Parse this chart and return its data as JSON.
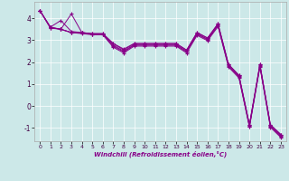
{
  "xlabel": "Windchill (Refroidissement éolien,°C)",
  "background_color": "#cce8e8",
  "line_color": "#880088",
  "xlim": [
    -0.5,
    23.5
  ],
  "ylim": [
    -1.6,
    4.75
  ],
  "yticks": [
    -1,
    0,
    1,
    2,
    3,
    4
  ],
  "xticks": [
    0,
    1,
    2,
    3,
    4,
    5,
    6,
    7,
    8,
    9,
    10,
    11,
    12,
    13,
    14,
    15,
    16,
    17,
    18,
    19,
    20,
    21,
    22,
    23
  ],
  "series": [
    [
      4.35,
      3.6,
      3.5,
      4.2,
      3.35,
      3.3,
      3.3,
      2.85,
      2.6,
      2.85,
      2.85,
      2.85,
      2.85,
      2.85,
      2.55,
      3.35,
      3.1,
      3.75,
      1.9,
      1.4,
      -0.85,
      1.9,
      -0.85,
      -1.3
    ],
    [
      4.35,
      3.6,
      3.9,
      3.4,
      3.35,
      3.3,
      3.3,
      2.85,
      2.55,
      2.85,
      2.85,
      2.85,
      2.85,
      2.85,
      2.55,
      3.35,
      3.1,
      3.75,
      1.9,
      1.4,
      -0.85,
      1.9,
      -0.85,
      -1.3
    ],
    [
      4.35,
      3.58,
      3.5,
      3.35,
      3.35,
      3.28,
      3.28,
      2.78,
      2.5,
      2.8,
      2.8,
      2.8,
      2.8,
      2.8,
      2.5,
      3.3,
      3.05,
      3.7,
      1.85,
      1.35,
      -0.9,
      1.85,
      -0.9,
      -1.35
    ],
    [
      4.35,
      3.57,
      3.5,
      3.35,
      3.33,
      3.27,
      3.27,
      2.73,
      2.47,
      2.77,
      2.77,
      2.77,
      2.77,
      2.77,
      2.47,
      3.27,
      3.02,
      3.67,
      1.82,
      1.32,
      -0.93,
      1.82,
      -0.93,
      -1.38
    ],
    [
      4.35,
      3.55,
      3.5,
      3.35,
      3.3,
      3.25,
      3.25,
      2.68,
      2.42,
      2.73,
      2.73,
      2.73,
      2.73,
      2.73,
      2.42,
      3.22,
      2.98,
      3.62,
      1.78,
      1.28,
      -0.96,
      1.78,
      -0.97,
      -1.43
    ]
  ]
}
